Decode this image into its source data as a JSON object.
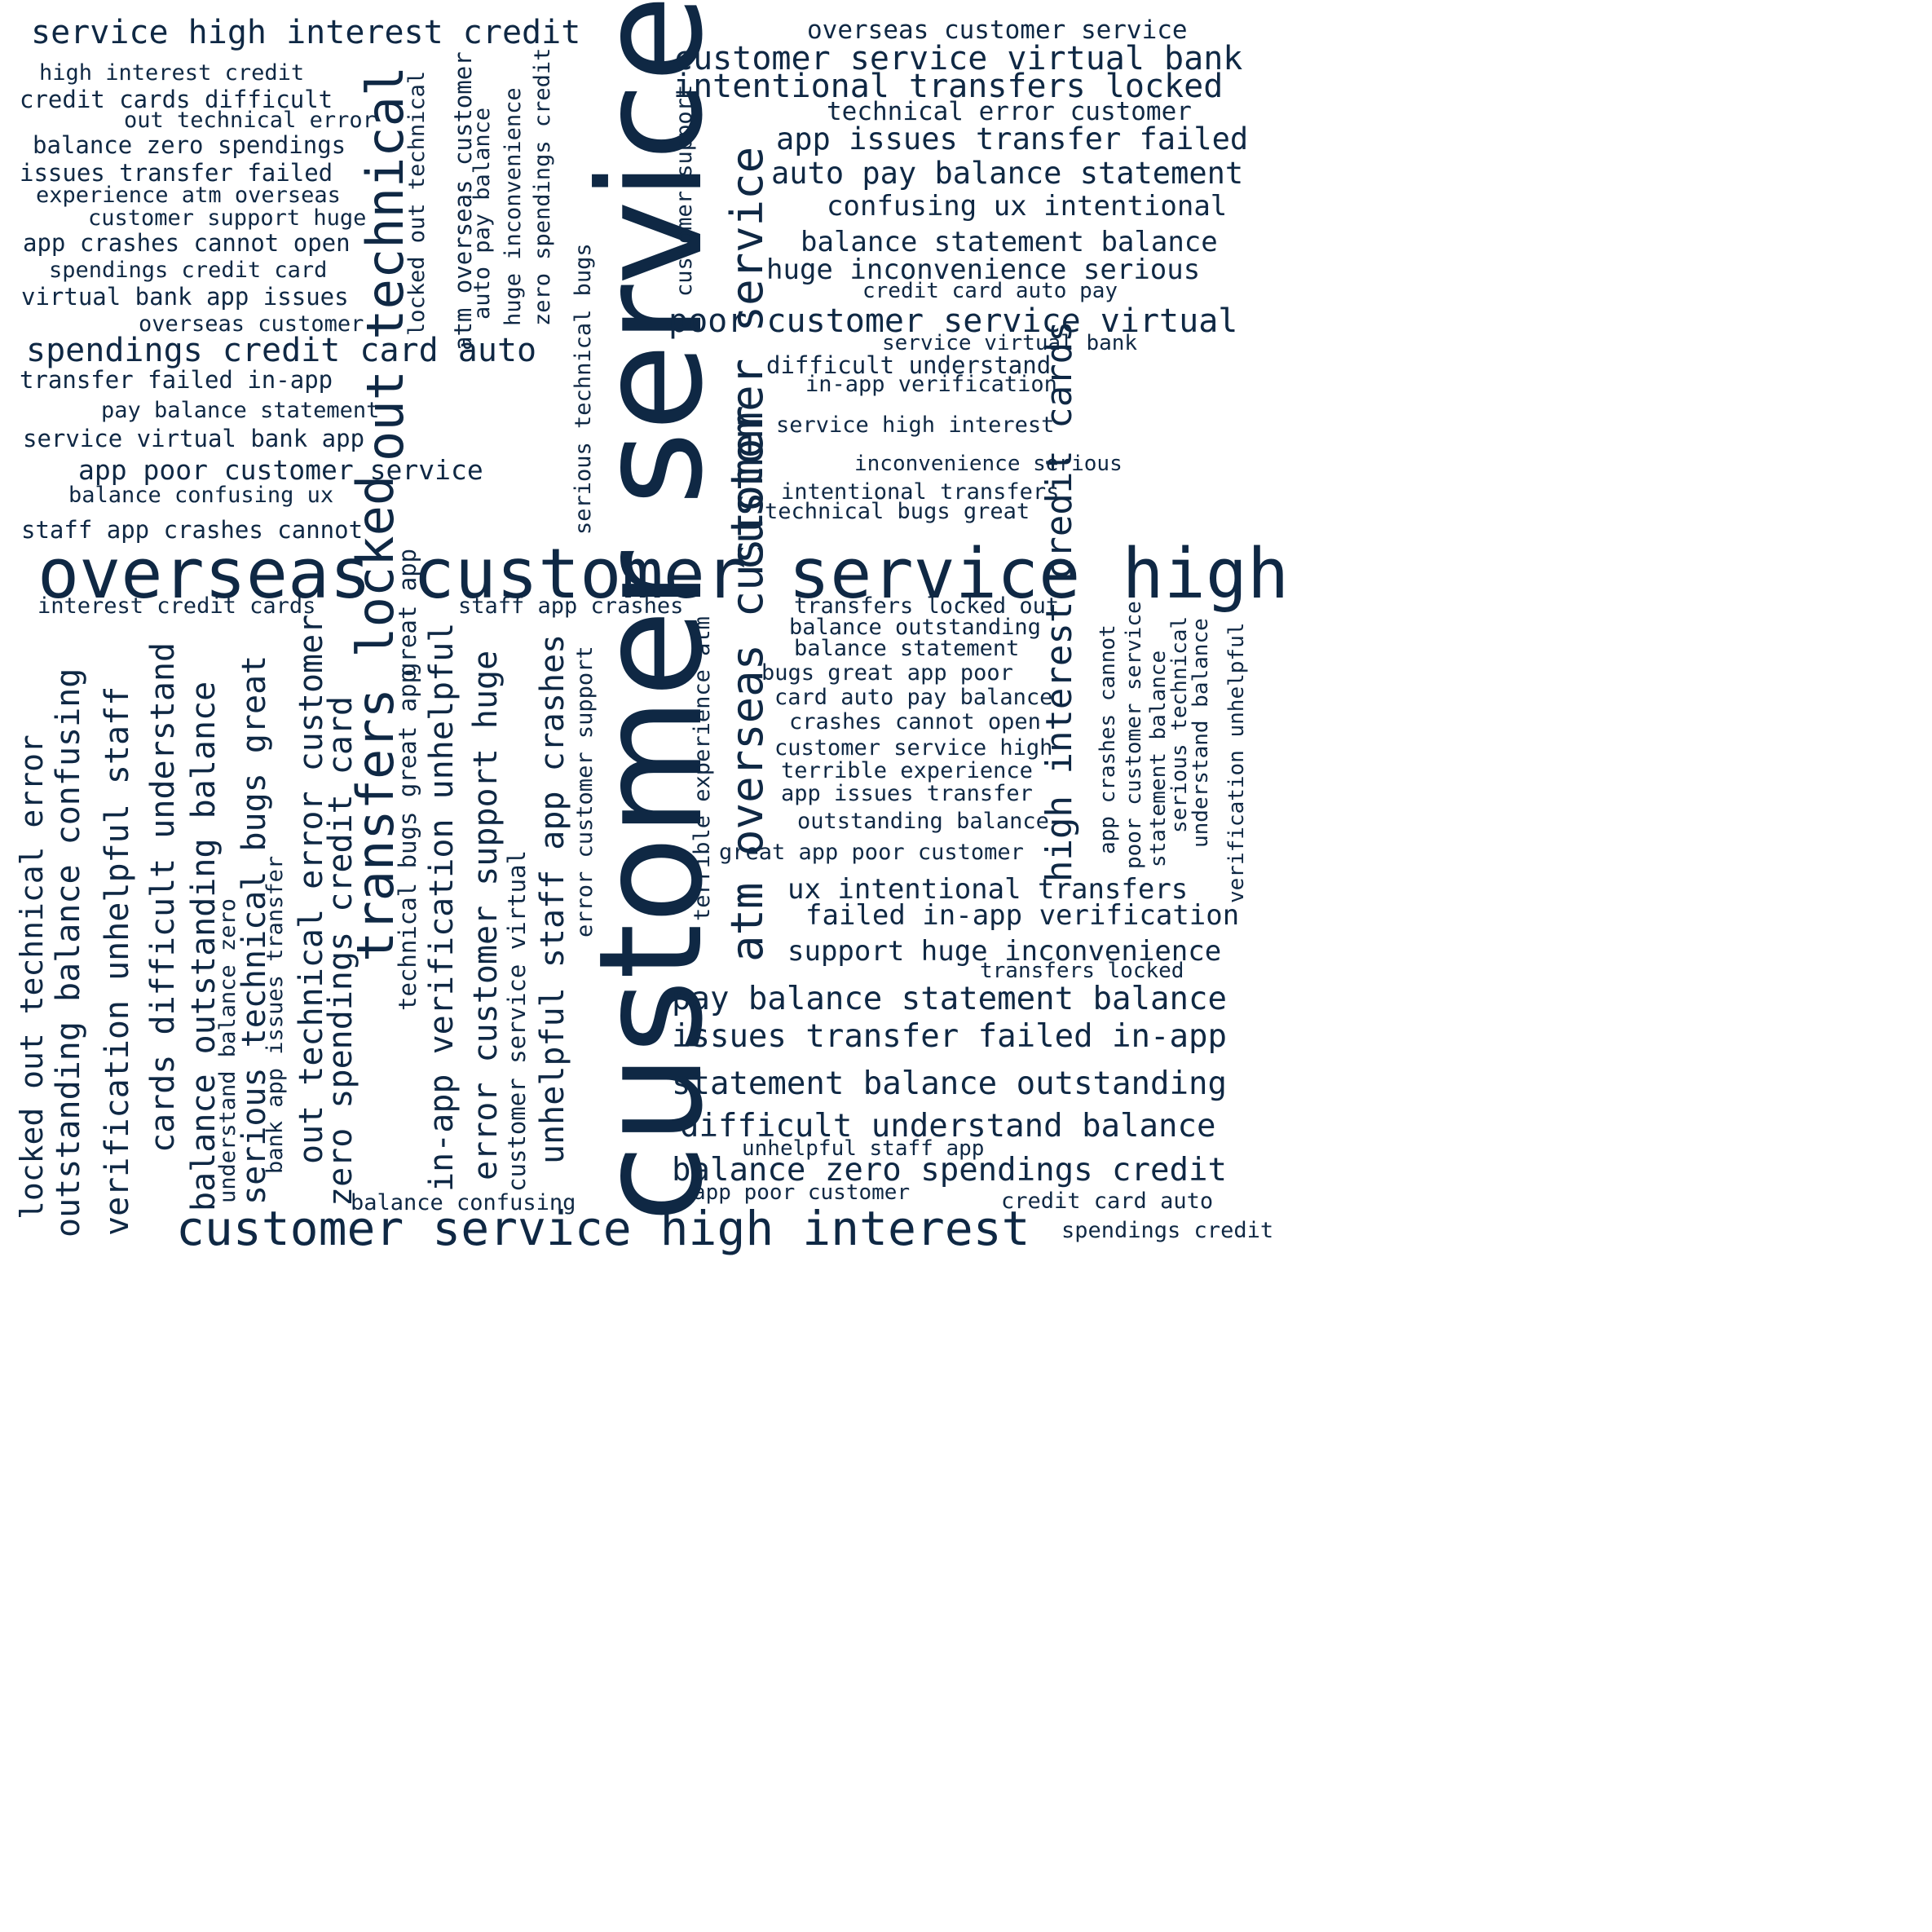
{
  "cloud": {
    "color": "#0f2844",
    "background": "#ffffff",
    "words": [
      "customer service",
      "overseas customer service high",
      "customer service high interest",
      "out technical",
      "transfers locked",
      "customer service",
      "atm overseas customer",
      "high interest credit cards",
      "service high interest credit",
      "customer service virtual bank",
      "intentional transfers locked",
      "poor customer service virtual",
      "auto pay balance statement",
      "app issues transfer failed",
      "spendings credit card auto",
      "app poor customer service",
      "pay balance statement balance",
      "issues transfer failed in-app",
      "statement balance outstanding",
      "balance zero spendings credit",
      "difficult understand balance",
      "huge inconvenience serious",
      "balance statement balance",
      "confusing ux intentional",
      "failed in-app verification",
      "ux intentional transfers",
      "support huge inconvenience",
      "overseas customer service",
      "technical error customer",
      "outstanding balance confusing",
      "verification unhelpful staff",
      "cards difficult understand",
      "balance outstanding balance",
      "serious technical bugs great",
      "out technical error customer",
      "zero spendings credit card",
      "in-app verification unhelpful",
      "error customer support huge",
      "unhelpful staff app crashes",
      "locked out technical error",
      "high interest credit",
      "credit cards difficult",
      "out technical error",
      "balance zero spendings",
      "issues transfer failed",
      "experience atm overseas",
      "customer support huge",
      "app crashes cannot open",
      "spendings credit card",
      "virtual bank app issues",
      "overseas customer",
      "transfer failed in-app",
      "pay balance statement",
      "service virtual bank app",
      "balance confusing ux",
      "staff app crashes cannot",
      "interest credit cards",
      "staff app crashes",
      "credit card auto pay",
      "service virtual bank",
      "difficult understand",
      "in-app verification",
      "service high interest",
      "inconvenience serious",
      "intentional transfers",
      "technical bugs great",
      "transfers locked out",
      "balance outstanding",
      "balance statement",
      "bugs great app poor",
      "card auto pay balance",
      "crashes cannot open",
      "customer service high",
      "terrible experience",
      "app issues transfer",
      "outstanding balance",
      "great app poor customer",
      "transfers locked",
      "unhelpful staff app",
      "app poor customer",
      "credit card auto",
      "spendings credit",
      "balance confusing",
      "locked out technical",
      "atm overseas customer",
      "auto pay balance",
      "huge inconvenience",
      "zero spendings credit",
      "serious technical bugs",
      "customer support",
      "terrible experience atm",
      "error customer support",
      "great app",
      "technical bugs great app",
      "customer service virtual",
      "understand balance zero",
      "bank app issues transfer",
      "app crashes cannot",
      "poor customer service",
      "statement balance",
      "serious technical",
      "understand balance",
      "verification unhelpful"
    ]
  }
}
